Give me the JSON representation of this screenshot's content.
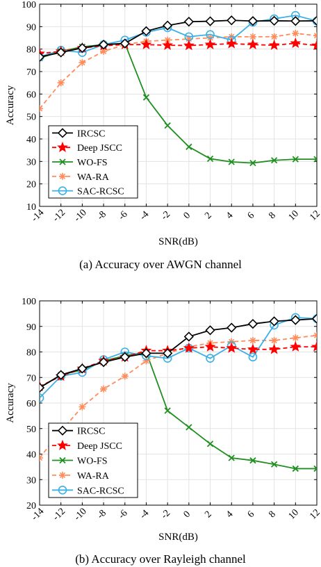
{
  "chart_data": [
    {
      "type": "line",
      "caption": "(a) Accuracy over AWGN channel",
      "xlabel": "SNR(dB)",
      "ylabel": "Accuracy",
      "x": [
        -14,
        -12,
        -10,
        -8,
        -6,
        -4,
        -2,
        0,
        2,
        4,
        6,
        8,
        10,
        12
      ],
      "xlim": [
        -14,
        12
      ],
      "ylim": [
        10,
        100
      ],
      "yticks": [
        10,
        20,
        30,
        40,
        50,
        60,
        70,
        80,
        90,
        100
      ],
      "grid": true,
      "legend_position": "lower-left",
      "series": [
        {
          "name": "IRCSC",
          "color": "#000000",
          "dash": "solid",
          "marker": "diamond",
          "values": [
            76.5,
            78.5,
            80.5,
            82,
            82.5,
            88,
            90.5,
            92.2,
            92.4,
            92.8,
            92.5,
            92.6,
            92.5,
            92.6
          ]
        },
        {
          "name": "Deep JSCC",
          "color": "#ff0000",
          "dash": "dashed",
          "marker": "star",
          "values": [
            78,
            79,
            80.5,
            81.5,
            82,
            82,
            81.7,
            81.6,
            82,
            82.4,
            82,
            81.7,
            82.6,
            81.6
          ]
        },
        {
          "name": "WO-FS",
          "color": "#1f8f1f",
          "dash": "solid",
          "marker": "x",
          "values": [
            76,
            79,
            81,
            82,
            82.5,
            58.5,
            46,
            36.5,
            31.2,
            29.8,
            29.3,
            30.5,
            31,
            31
          ]
        },
        {
          "name": "WA-RA",
          "color": "#ff8c5a",
          "dash": "dashed",
          "marker": "asterisk",
          "values": [
            53.5,
            65,
            74,
            79,
            82,
            83.5,
            84,
            84.5,
            85,
            85.5,
            85.5,
            85.5,
            87,
            86
          ]
        },
        {
          "name": "SAC-RCSC",
          "color": "#3ab0e6",
          "dash": "solid",
          "marker": "circle",
          "values": [
            76.5,
            79.5,
            78.5,
            82,
            84,
            87.5,
            89.5,
            85.5,
            86.5,
            84,
            92,
            93.5,
            95,
            92.5
          ]
        }
      ]
    },
    {
      "type": "line",
      "caption": "(b) Accuracy over Rayleigh channel",
      "xlabel": "SNR(dB)",
      "ylabel": "Accuracy",
      "x": [
        -14,
        -12,
        -10,
        -8,
        -6,
        -4,
        -2,
        0,
        2,
        4,
        6,
        8,
        10,
        12
      ],
      "xlim": [
        -14,
        12
      ],
      "ylim": [
        20,
        100
      ],
      "yticks": [
        20,
        30,
        40,
        50,
        60,
        70,
        80,
        90,
        100
      ],
      "grid": true,
      "legend_position": "lower-left",
      "series": [
        {
          "name": "IRCSC",
          "color": "#000000",
          "dash": "solid",
          "marker": "diamond",
          "values": [
            66,
            71,
            73.5,
            76,
            78,
            79.5,
            79.5,
            86,
            88.5,
            89.5,
            91,
            92,
            92.5,
            93
          ]
        },
        {
          "name": "Deep JSCC",
          "color": "#ff0000",
          "dash": "dashed",
          "marker": "star",
          "values": [
            66.5,
            70.5,
            73.5,
            76.5,
            78,
            80.5,
            80.5,
            81.5,
            82,
            81.5,
            81,
            81,
            82,
            82
          ]
        },
        {
          "name": "WO-FS",
          "color": "#1f8f1f",
          "dash": "solid",
          "marker": "x",
          "values": [
            66,
            71,
            73,
            76.5,
            78.5,
            80,
            57,
            50.5,
            44,
            38.5,
            37.5,
            36,
            34.3,
            34.3
          ]
        },
        {
          "name": "WA-RA",
          "color": "#ff8c5a",
          "dash": "dashed",
          "marker": "asterisk",
          "values": [
            38.5,
            49,
            58.5,
            65.5,
            70.5,
            76.5,
            79.5,
            82,
            83.5,
            84,
            84.5,
            84.5,
            85.5,
            86.5
          ]
        },
        {
          "name": "SAC-RCSC",
          "color": "#3ab0e6",
          "dash": "solid",
          "marker": "circle",
          "values": [
            62,
            70.5,
            72,
            77,
            80,
            78.5,
            77.5,
            81.5,
            77.5,
            82.5,
            78,
            90.5,
            93.5,
            93
          ]
        }
      ]
    }
  ]
}
